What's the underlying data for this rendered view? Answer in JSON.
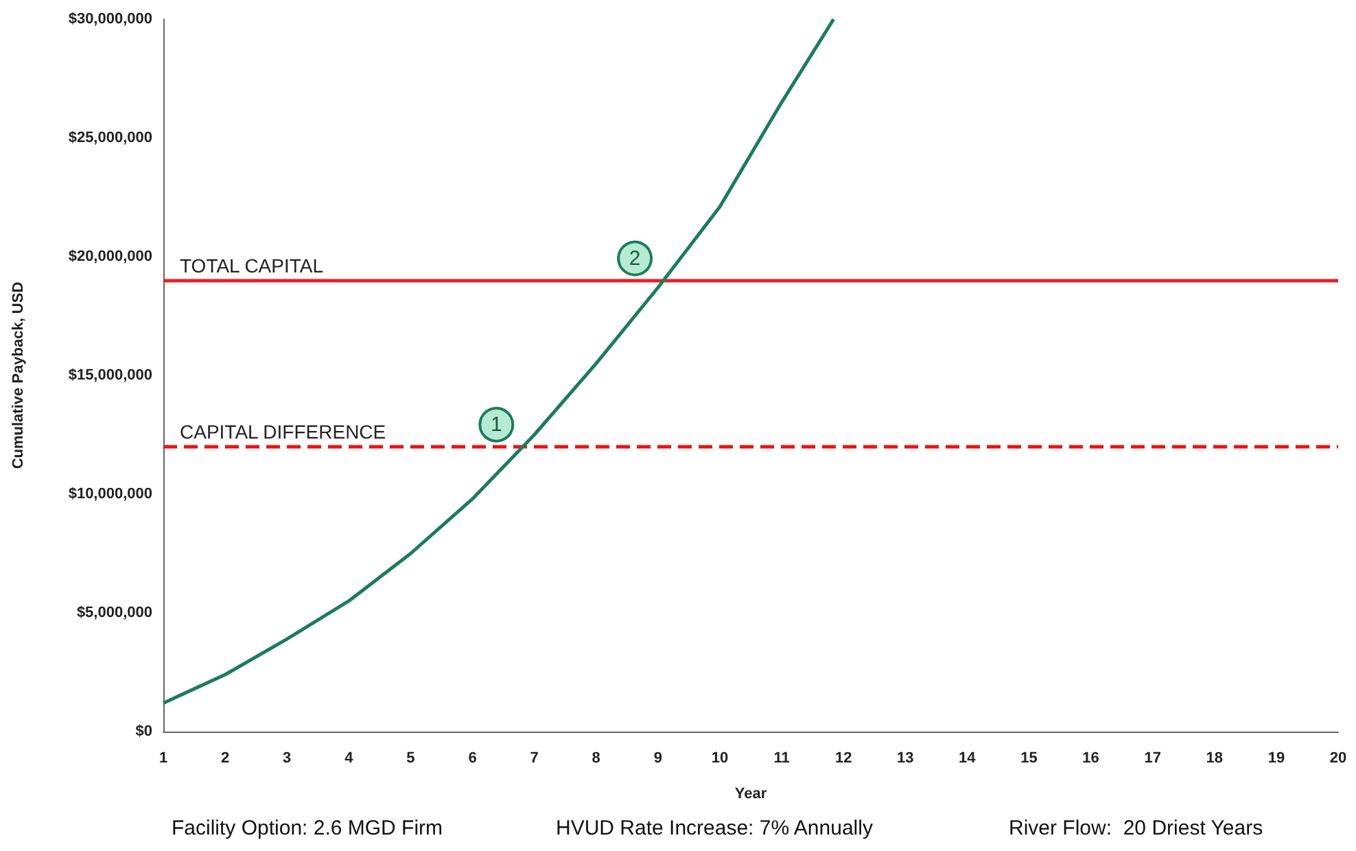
{
  "chart_data": {
    "type": "line",
    "xlabel": "Year",
    "ylabel": "Cumulative Payback, USD",
    "x": [
      1,
      2,
      3,
      4,
      5,
      6,
      7,
      8,
      9,
      10,
      11,
      11.84
    ],
    "series": [
      {
        "color": "#1e7b5c",
        "values": [
          1200000,
          2400000,
          3900000,
          5500000,
          7500000,
          9800000,
          12500000,
          15500000,
          18700000,
          22100000,
          26500000,
          30000000
        ]
      }
    ],
    "xlim": [
      1,
      20
    ],
    "xticks": [
      1,
      2,
      3,
      4,
      5,
      6,
      7,
      8,
      9,
      10,
      11,
      12,
      13,
      14,
      15,
      16,
      17,
      18,
      19,
      20
    ],
    "ylim": [
      0,
      30000000
    ],
    "yticks": [
      {
        "value": 0,
        "label": "$0"
      },
      {
        "value": 5000000,
        "label": "$5,000,000"
      },
      {
        "value": 10000000,
        "label": "$10,000,000"
      },
      {
        "value": 15000000,
        "label": "$15,000,000"
      },
      {
        "value": 20000000,
        "label": "$20,000,000"
      },
      {
        "value": 25000000,
        "label": "$25,000,000"
      },
      {
        "value": 30000000,
        "label": "$30,000,000"
      }
    ],
    "ref_lines": [
      {
        "axis": "y",
        "value": 19000000,
        "label": "TOTAL CAPITAL",
        "color": "#e8202a",
        "line_style": "solid"
      },
      {
        "axis": "y",
        "value": 12000000,
        "label": "CAPITAL DIFFERENCE",
        "color": "#f01010",
        "line_style": "dashed"
      }
    ],
    "annotations": [
      {
        "text": "1",
        "x": 6.83,
        "y": 12000000
      },
      {
        "text": "2",
        "x": 9.07,
        "y": 19000000
      },
      "Facility Option: 2.6 MGD Firm",
      "HVUD Rate Increase: 7% Annually",
      "River Flow:  20 Driest Years"
    ],
    "marker": "none",
    "line_style": "solid",
    "grid": false
  }
}
